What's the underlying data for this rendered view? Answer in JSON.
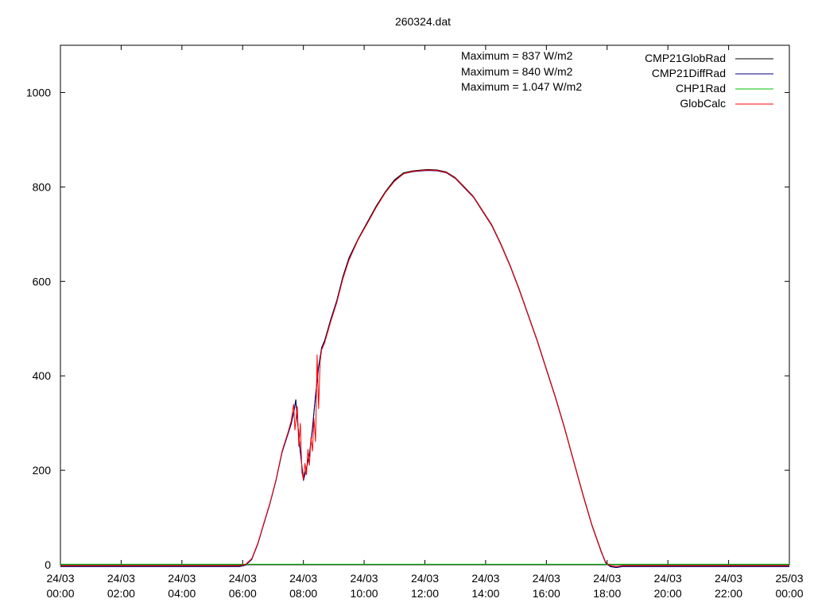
{
  "chart_data": {
    "type": "line",
    "title": "260324.dat",
    "xlabel": "",
    "ylabel": "",
    "xlim": [
      0,
      24
    ],
    "ylim": [
      0,
      1100
    ],
    "grid": false,
    "legend_position": "top-right",
    "y_ticks": [
      0,
      200,
      400,
      600,
      800,
      1000
    ],
    "x_ticks": [
      {
        "hour": 0,
        "line1": "24/03",
        "line2": "00:00"
      },
      {
        "hour": 2,
        "line1": "24/03",
        "line2": "02:00"
      },
      {
        "hour": 4,
        "line1": "24/03",
        "line2": "04:00"
      },
      {
        "hour": 6,
        "line1": "24/03",
        "line2": "06:00"
      },
      {
        "hour": 8,
        "line1": "24/03",
        "line2": "08:00"
      },
      {
        "hour": 10,
        "line1": "24/03",
        "line2": "10:00"
      },
      {
        "hour": 12,
        "line1": "24/03",
        "line2": "12:00"
      },
      {
        "hour": 14,
        "line1": "24/03",
        "line2": "14:00"
      },
      {
        "hour": 16,
        "line1": "24/03",
        "line2": "16:00"
      },
      {
        "hour": 18,
        "line1": "24/03",
        "line2": "18:00"
      },
      {
        "hour": 20,
        "line1": "24/03",
        "line2": "20:00"
      },
      {
        "hour": 22,
        "line1": "24/03",
        "line2": "22:00"
      },
      {
        "hour": 24,
        "line1": "25/03",
        "line2": "00:00"
      }
    ],
    "annotations": [
      "Maximum = 837 W/m2",
      "Maximum = 840 W/m2",
      "Maximum = 1.047 W/m2"
    ],
    "series": [
      {
        "name": "CMP21GlobRad",
        "color": "#000000",
        "x": [
          0,
          5.9,
          6.1,
          6.3,
          6.5,
          6.7,
          6.9,
          7.1,
          7.3,
          7.5,
          7.6,
          7.7,
          7.75,
          7.8,
          7.9,
          8.0,
          8.1,
          8.2,
          8.3,
          8.4,
          8.5,
          8.6,
          8.7,
          8.9,
          9.1,
          9.3,
          9.5,
          9.8,
          10.1,
          10.4,
          10.7,
          11.0,
          11.3,
          11.6,
          11.9,
          12.1,
          12.4,
          12.7,
          13.0,
          13.3,
          13.6,
          13.9,
          14.2,
          14.5,
          14.8,
          15.1,
          15.4,
          15.7,
          16.0,
          16.3,
          16.6,
          16.9,
          17.2,
          17.5,
          17.8,
          17.95,
          18.1,
          18.3,
          18.5,
          24
        ],
        "y": [
          -3,
          -3,
          0,
          12,
          45,
          88,
          130,
          180,
          240,
          280,
          300,
          330,
          350,
          310,
          240,
          180,
          205,
          235,
          290,
          360,
          420,
          460,
          475,
          520,
          560,
          610,
          650,
          690,
          725,
          760,
          790,
          815,
          830,
          834,
          836,
          837,
          836,
          832,
          820,
          800,
          780,
          750,
          720,
          680,
          635,
          585,
          530,
          475,
          415,
          355,
          290,
          220,
          150,
          85,
          30,
          5,
          -3,
          -5,
          -3,
          -3
        ]
      },
      {
        "name": "CMP21DiffRad",
        "color": "#000080",
        "x": [
          0,
          5.9,
          6.1,
          6.3,
          6.5,
          6.7,
          6.9,
          7.1,
          7.3,
          7.5,
          7.6,
          7.7,
          7.75,
          7.8,
          7.9,
          8.0,
          8.1,
          8.2,
          8.3,
          8.4,
          8.5,
          8.6,
          8.7,
          8.9,
          9.1,
          9.3,
          9.5,
          9.8,
          10.1,
          10.4,
          10.7,
          11.0,
          11.3,
          11.6,
          11.9,
          12.1,
          12.4,
          12.7,
          13.0,
          13.3,
          13.6,
          13.9,
          14.2,
          14.5,
          14.8,
          15.1,
          15.4,
          15.7,
          16.0,
          16.3,
          16.6,
          16.9,
          17.2,
          17.5,
          17.8,
          17.95,
          18.1,
          18.3,
          18.5,
          24
        ],
        "y": [
          -4,
          -4,
          -1,
          11,
          44,
          87,
          129,
          179,
          238,
          278,
          298,
          328,
          348,
          308,
          238,
          178,
          203,
          233,
          288,
          358,
          418,
          458,
          473,
          518,
          558,
          608,
          648,
          688,
          723,
          758,
          788,
          813,
          828,
          832,
          834,
          835,
          834,
          830,
          818,
          798,
          778,
          748,
          718,
          678,
          633,
          583,
          528,
          473,
          413,
          353,
          288,
          218,
          148,
          83,
          28,
          4,
          -4,
          -6,
          -4,
          -4
        ]
      },
      {
        "name": "CHP1Rad",
        "color": "#00c000",
        "x": [
          0,
          24
        ],
        "y": [
          1,
          1
        ]
      },
      {
        "name": "GlobCalc",
        "color": "#ff0000",
        "x": [
          0,
          5.9,
          6.1,
          6.3,
          6.5,
          6.7,
          6.9,
          7.1,
          7.3,
          7.5,
          7.6,
          7.68,
          7.72,
          7.8,
          7.85,
          7.9,
          7.95,
          8.0,
          8.05,
          8.1,
          8.15,
          8.2,
          8.25,
          8.3,
          8.35,
          8.4,
          8.45,
          8.5,
          8.55,
          8.6,
          8.7,
          8.9,
          9.1,
          9.3,
          9.5,
          9.8,
          10.1,
          10.4,
          10.7,
          11.0,
          11.3,
          11.6,
          11.9,
          12.1,
          12.4,
          12.7,
          13.0,
          13.3,
          13.6,
          13.9,
          14.2,
          14.5,
          14.8,
          15.1,
          15.4,
          15.7,
          16.0,
          16.3,
          16.6,
          16.9,
          17.2,
          17.5,
          17.8,
          17.95,
          18.1,
          18.3,
          18.5,
          24
        ],
        "y": [
          -2,
          -2,
          1,
          13,
          46,
          89,
          131,
          181,
          241,
          282,
          305,
          340,
          285,
          335,
          250,
          300,
          195,
          180,
          215,
          190,
          245,
          210,
          270,
          240,
          310,
          260,
          445,
          330,
          430,
          455,
          470,
          515,
          555,
          605,
          645,
          688,
          722,
          757,
          788,
          812,
          828,
          833,
          835,
          836,
          835,
          831,
          819,
          799,
          779,
          749,
          719,
          679,
          634,
          584,
          529,
          474,
          414,
          354,
          289,
          219,
          149,
          84,
          29,
          6,
          -2,
          -4,
          -2,
          -2
        ]
      }
    ]
  }
}
